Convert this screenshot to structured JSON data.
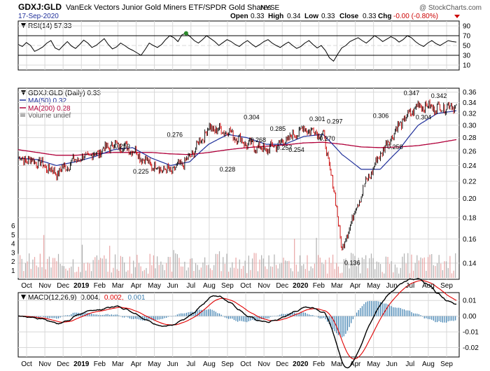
{
  "header": {
    "symbol": "GDXJ:GLD",
    "description": "VanEck Vectors Junior Gold Miners ETF/SPDR Gold Shares",
    "exchange": "NYSE",
    "watermark": "@ StockCharts.com",
    "date": "17-Sep-2020",
    "open_label": "Open",
    "open": "0.33",
    "high_label": "High",
    "high": "0.34",
    "low_label": "Low",
    "low": "0.33",
    "close_label": "Close",
    "close": "0.33",
    "chg_label": "Chg",
    "chg": "-0.00 (-0.80%)"
  },
  "rsi_panel": {
    "label": "RSI(14) 57.33",
    "ticks": [
      "90",
      "70",
      "50",
      "30",
      "10"
    ],
    "tick_values": [
      90,
      70,
      50,
      30,
      10
    ],
    "overbought": 70,
    "oversold": 30,
    "values": [
      52,
      48,
      56,
      50,
      38,
      42,
      47,
      55,
      60,
      45,
      41,
      50,
      58,
      49,
      44,
      52,
      61,
      55,
      46,
      50,
      57,
      64,
      52,
      43,
      47,
      55,
      50,
      44,
      40,
      35,
      30,
      42,
      55,
      50,
      46,
      52,
      62,
      70,
      66,
      58,
      72,
      75,
      68,
      60,
      55,
      62,
      70,
      64,
      58,
      50,
      56,
      62,
      58,
      52,
      48,
      55,
      60,
      53,
      47,
      52,
      58,
      62,
      55,
      50,
      46,
      52,
      57,
      50,
      44,
      48,
      55,
      60,
      52,
      45,
      50,
      40,
      25,
      18,
      32,
      45,
      50,
      58,
      62,
      66,
      60,
      55,
      62,
      70,
      65,
      58,
      63,
      68,
      64,
      57,
      62,
      70,
      66,
      58,
      52,
      48,
      55,
      60,
      54,
      50,
      55,
      60,
      58,
      57
    ]
  },
  "price_panel": {
    "legend_main": "GDXJ:GLD (Daily) 0.33",
    "legend_ma50": "MA(50) 0.32",
    "legend_ma200": "MA(200) 0.28",
    "legend_volume": "Volume undef",
    "price_ticks": [
      "0.36",
      "0.34",
      "0.32",
      "0.30",
      "0.28",
      "0.26",
      "0.24",
      "0.22",
      "0.20",
      "0.18",
      "0.16",
      "0.14"
    ],
    "price_tick_values": [
      0.36,
      0.34,
      0.32,
      0.3,
      0.28,
      0.26,
      0.24,
      0.22,
      0.2,
      0.18,
      0.16,
      0.14
    ],
    "volume_ticks": [
      "6",
      "5",
      "4",
      "3",
      "2",
      "1"
    ],
    "annotations": [
      {
        "text": "0.259",
        "x": 9.5,
        "y": 0.259
      },
      {
        "text": "0.225",
        "x": 11.2,
        "y": 0.225
      },
      {
        "text": "0.276",
        "x": 14.3,
        "y": 0.276
      },
      {
        "text": "0.228",
        "x": 19.1,
        "y": 0.228
      },
      {
        "text": "0.304",
        "x": 21.3,
        "y": 0.304
      },
      {
        "text": "0.268",
        "x": 21.9,
        "y": 0.268
      },
      {
        "text": "0.285",
        "x": 23.7,
        "y": 0.285
      },
      {
        "text": "0.257",
        "x": 24.3,
        "y": 0.257
      },
      {
        "text": "0.254",
        "x": 25.4,
        "y": 0.254
      },
      {
        "text": "0.301",
        "x": 27.3,
        "y": 0.301
      },
      {
        "text": "0.297",
        "x": 28.9,
        "y": 0.297
      },
      {
        "text": "0.270",
        "x": 28.2,
        "y": 0.27
      },
      {
        "text": "0.136",
        "x": 30.5,
        "y": 0.136
      },
      {
        "text": "0.306",
        "x": 33.1,
        "y": 0.306
      },
      {
        "text": "0.258",
        "x": 34.4,
        "y": 0.258
      },
      {
        "text": "0.347",
        "x": 35.9,
        "y": 0.347
      },
      {
        "text": "0.304",
        "x": 37.0,
        "y": 0.304
      },
      {
        "text": "0.342",
        "x": 38.4,
        "y": 0.342
      }
    ]
  },
  "macd_panel": {
    "label_prefix": "MACD(12,26,9)",
    "macd_value": "0.004,",
    "signal_value": "0.002,",
    "hist_value": "0.001",
    "ticks": [
      "0.01",
      "0.00",
      "-0.01",
      "-0.02"
    ],
    "tick_values": [
      0.01,
      0.0,
      -0.01,
      -0.02
    ]
  },
  "x_axis": {
    "labels": [
      "Oct",
      "Nov",
      "Dec",
      "2019",
      "Feb",
      "Mar",
      "Apr",
      "May",
      "Jun",
      "Jul",
      "Aug",
      "Sep",
      "Oct",
      "Nov",
      "Dec",
      "2020",
      "Feb",
      "Mar",
      "Apr",
      "May",
      "Jun",
      "Jul",
      "Aug",
      "Sep"
    ],
    "bold": [
      "2019",
      "2020"
    ]
  },
  "colors": {
    "up_candle": "#000000",
    "down_candle": "#cc0000",
    "ma50": "#1f2f9a",
    "ma200": "#b0003a",
    "macd_line": "#000000",
    "signal_line": "#e00000",
    "hist": "#3c7fb0",
    "volume_up": "#b0b0b0",
    "volume_down": "#e9a6a6",
    "rsi_line": "#000000",
    "rsi_dot": "#2b8a2b",
    "chg_red": "#cc0000",
    "date_blue": "#1f2f9a"
  },
  "chart_data": {
    "type": "line",
    "x": [
      "Oct",
      "Nov",
      "Dec",
      "2019",
      "Feb",
      "Mar",
      "Apr",
      "May",
      "Jun",
      "Jul",
      "Aug",
      "Sep",
      "Oct",
      "Nov",
      "Dec",
      "2020",
      "Feb",
      "Mar",
      "Apr",
      "May",
      "Jun",
      "Jul",
      "Aug",
      "Sep"
    ],
    "series": [
      {
        "name": "GDXJ:GLD (Daily)",
        "values": [
          0.25,
          0.245,
          0.23,
          0.248,
          0.255,
          0.27,
          0.262,
          0.24,
          0.232,
          0.25,
          0.295,
          0.29,
          0.27,
          0.262,
          0.275,
          0.295,
          0.285,
          0.15,
          0.205,
          0.255,
          0.3,
          0.335,
          0.33,
          0.335
        ]
      },
      {
        "name": "MA(50)",
        "values": [
          0.25,
          0.248,
          0.24,
          0.245,
          0.252,
          0.262,
          0.265,
          0.25,
          0.24,
          0.245,
          0.27,
          0.285,
          0.28,
          0.27,
          0.27,
          0.282,
          0.285,
          0.255,
          0.235,
          0.235,
          0.262,
          0.3,
          0.32,
          0.325
        ]
      },
      {
        "name": "MA(200)",
        "values": [
          0.262,
          0.258,
          0.254,
          0.254,
          0.256,
          0.258,
          0.258,
          0.258,
          0.256,
          0.255,
          0.258,
          0.262,
          0.265,
          0.267,
          0.269,
          0.272,
          0.273,
          0.27,
          0.266,
          0.265,
          0.266,
          0.268,
          0.272,
          0.277
        ]
      }
    ],
    "title": "GDXJ:GLD (Daily) 0.33",
    "ylim": [
      0.13,
      0.36
    ],
    "y_log_scale": true,
    "grid": true,
    "legend": "top-left"
  }
}
